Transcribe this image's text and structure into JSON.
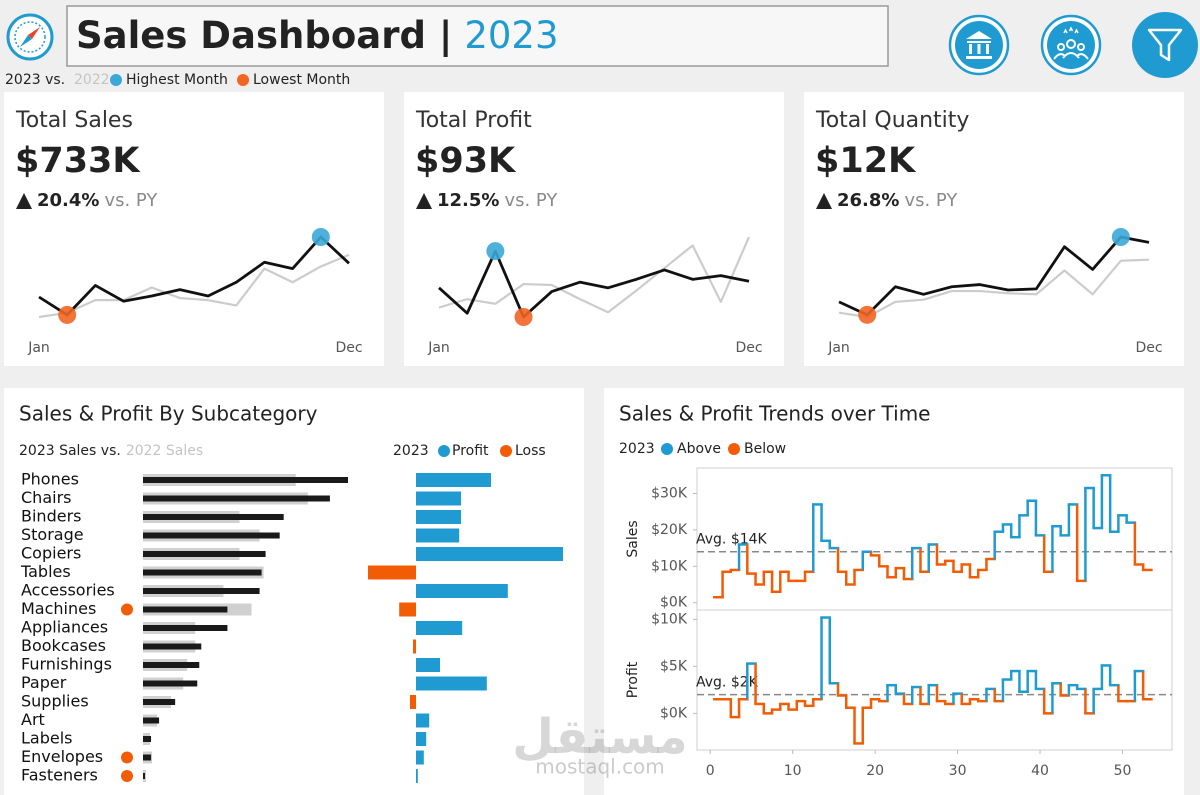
{
  "header": {
    "title": "Sales Dashboard |",
    "year": "2023",
    "legend": {
      "compare": "2023 vs.",
      "prior": "2022",
      "highest": "Highest Month",
      "lowest": "Lowest Month",
      "highest_color": "#3aa8d8",
      "lowest_color": "#f26522"
    }
  },
  "watermark": {
    "arabic": "مستقل",
    "latin": "mostaql.com"
  },
  "chart_data": [
    {
      "type": "line",
      "title": "Total Sales",
      "value_text": "$733K",
      "change": "20.4%",
      "change_label": "vs. PY",
      "categories": [
        "Jan",
        null,
        null,
        null,
        null,
        null,
        null,
        null,
        null,
        null,
        null,
        "Dec"
      ],
      "series": [
        {
          "color": "#111111",
          "values": [
            43,
            26,
            54,
            39,
            44,
            50,
            44,
            57,
            76,
            70,
            100,
            75
          ]
        },
        {
          "color": "#cccccc",
          "values": [
            24,
            28,
            40,
            40,
            52,
            42,
            40,
            35,
            70,
            57,
            72,
            83
          ]
        }
      ]
    },
    {
      "type": "line",
      "title": "Total Profit",
      "value_text": "$93K",
      "change": "12.5%",
      "change_label": "vs. PY",
      "categories": [
        "Jan",
        null,
        null,
        null,
        null,
        null,
        null,
        null,
        null,
        null,
        null,
        "Dec"
      ],
      "series": [
        {
          "color": "#111111",
          "values": [
            9,
            3.6,
            16.8,
            2.8,
            8.2,
            10.2,
            9,
            10.8,
            12.8,
            10.8,
            11.6,
            10.4
          ]
        },
        {
          "color": "#cccccc",
          "values": [
            4.8,
            6.6,
            5.6,
            9.8,
            9.6,
            6.6,
            3.8,
            8.4,
            13.2,
            18,
            6,
            19.8
          ]
        }
      ]
    },
    {
      "type": "line",
      "title": "Total Quantity",
      "value_text": "$12K",
      "change": "26.8%",
      "change_label": "vs. PY",
      "categories": [
        "Jan",
        null,
        null,
        null,
        null,
        null,
        null,
        null,
        null,
        null,
        null,
        "Dec"
      ],
      "series": [
        {
          "color": "#111111",
          "values": [
            600,
            360,
            880,
            740,
            880,
            920,
            820,
            840,
            1620,
            1200,
            1800,
            1700
          ]
        },
        {
          "color": "#cccccc",
          "values": [
            400,
            320,
            600,
            640,
            800,
            800,
            760,
            740,
            1180,
            740,
            1360,
            1380
          ]
        }
      ]
    },
    {
      "type": "bar",
      "title": "Sales & Profit By Subcategory",
      "sales_legend": {
        "current": "2023 Sales vs.",
        "prior": "2022 Sales"
      },
      "profit_legend": {
        "year": "2023",
        "positive": "Profit",
        "negative": "Loss"
      },
      "categories": [
        "Phones",
        "Chairs",
        "Binders",
        "Storage",
        "Copiers",
        "Tables",
        "Accessories",
        "Machines",
        "Appliances",
        "Bookcases",
        "Furnishings",
        "Paper",
        "Supplies",
        "Art",
        "Labels",
        "Envelopes",
        "Fasteners"
      ],
      "series": [
        {
          "color": "#1a1a1a",
          "values": [
            102,
            93,
            70,
            68,
            61,
            59,
            58,
            42,
            42,
            29,
            28,
            27,
            16,
            8,
            4,
            4,
            1
          ]
        },
        {
          "color": "#d0d0d0",
          "values": [
            76,
            82,
            48,
            58,
            48,
            60,
            40,
            54,
            26,
            26,
            22,
            20,
            14,
            7,
            3.5,
            4.5,
            1.5
          ]
        },
        {
          "color": "#1f9bd1",
          "negative_color": "#f25c05",
          "values": [
            12.5,
            7.5,
            7.5,
            7.2,
            24.5,
            -8,
            15.3,
            -2.8,
            7.7,
            -0.5,
            4,
            11.8,
            -1,
            2.2,
            1.7,
            1.3,
            0.3
          ]
        }
      ],
      "flagged": [
        false,
        false,
        false,
        false,
        false,
        false,
        false,
        true,
        false,
        false,
        false,
        false,
        false,
        false,
        false,
        true,
        true
      ],
      "flag_color": "#f25c05"
    },
    {
      "type": "step",
      "title": "Sales & Profit Trends over Time",
      "legend": {
        "year": "2023",
        "above": "Above",
        "below": "Below"
      },
      "above_color": "#1f9bd1",
      "below_color": "#f25c05",
      "x": [
        1,
        2,
        3,
        4,
        5,
        6,
        7,
        8,
        9,
        10,
        11,
        12,
        13,
        14,
        15,
        16,
        17,
        18,
        19,
        20,
        21,
        22,
        23,
        24,
        25,
        26,
        27,
        28,
        29,
        30,
        31,
        32,
        33,
        34,
        35,
        36,
        37,
        38,
        39,
        40,
        41,
        42,
        43,
        44,
        45,
        46,
        47,
        48,
        49,
        50,
        51,
        52,
        53
      ],
      "xlim": [
        -1.6,
        56
      ],
      "xticks": [
        0,
        10,
        20,
        30,
        40,
        50
      ],
      "panels": [
        {
          "ylabel": "Sales",
          "ylim": [
            -2000,
            37000
          ],
          "yticks": [
            {
              "value": 0,
              "label": "$0K"
            },
            {
              "value": 10000,
              "label": "$10K"
            },
            {
              "value": 20000,
              "label": "$20K"
            },
            {
              "value": 30000,
              "label": "$30K"
            }
          ],
          "avg": {
            "value": 14000,
            "label": "Avg. $14K"
          },
          "values": [
            1500,
            8500,
            9000,
            16000,
            8000,
            5000,
            8500,
            3000,
            8500,
            6000,
            6000,
            8500,
            27000,
            17000,
            15000,
            8500,
            5000,
            9000,
            14000,
            13000,
            10000,
            7000,
            9500,
            6500,
            15000,
            8500,
            16000,
            10500,
            11500,
            8500,
            10500,
            7000,
            9000,
            12000,
            19500,
            21500,
            18000,
            24000,
            28000,
            18500,
            8500,
            21000,
            18500,
            27000,
            6000,
            31500,
            20500,
            35000,
            19500,
            24000,
            22000,
            10500,
            9000
          ]
        },
        {
          "ylabel": "Profit",
          "ylim": [
            -3900,
            11000
          ],
          "yticks": [
            {
              "value": 0,
              "label": "$0K"
            },
            {
              "value": 5000,
              "label": "$5K"
            },
            {
              "value": 10000,
              "label": "$10K"
            }
          ],
          "avg": {
            "value": 2000,
            "label": "Avg. $2K"
          },
          "values": [
            1500,
            1500,
            -400,
            1500,
            5300,
            1000,
            0,
            400,
            1000,
            400,
            1300,
            800,
            1500,
            10200,
            3200,
            1900,
            600,
            -3200,
            600,
            1500,
            1300,
            3000,
            2100,
            1000,
            2800,
            1000,
            3000,
            1300,
            1000,
            2100,
            1000,
            1500,
            1300,
            2600,
            1300,
            3600,
            4500,
            2300,
            4500,
            2600,
            0,
            3200,
            1900,
            3000,
            2600,
            0,
            2600,
            5100,
            3000,
            1300,
            1300,
            4500,
            1500
          ]
        }
      ]
    }
  ]
}
